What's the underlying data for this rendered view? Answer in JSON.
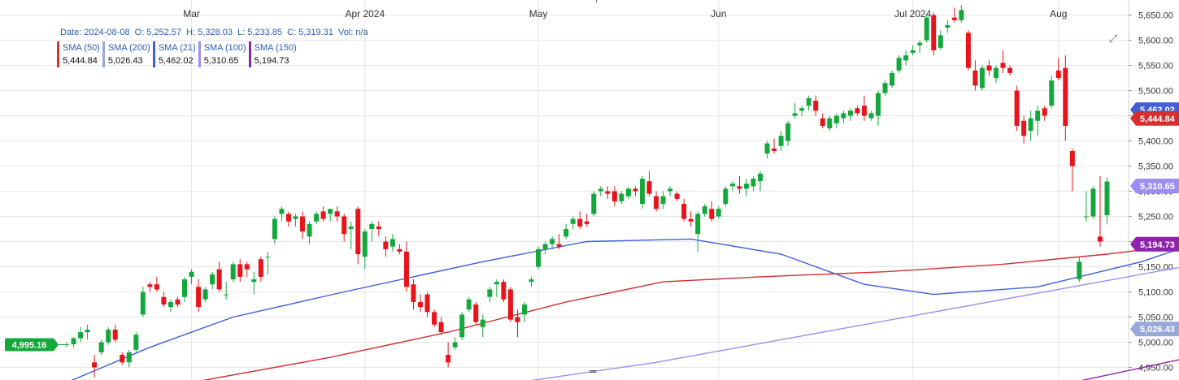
{
  "ohlc": {
    "date_label": "Date:",
    "date": "2024-08-08",
    "open_label": "O:",
    "open": "5,252.57",
    "high_label": "H:",
    "high": "5,328.03",
    "low_label": "L:",
    "low": "5,233.85",
    "close_label": "C:",
    "close": "5,319.31",
    "vol_label": "Vol:",
    "vol": "n/a"
  },
  "legend": [
    {
      "name": "SMA (50)",
      "value": "5,444.84",
      "color": "#d32f2f"
    },
    {
      "name": "SMA (200)",
      "value": "5,026.43",
      "color": "#98a8d8"
    },
    {
      "name": "SMA (21)",
      "value": "5,462.02",
      "color": "#3d5fd9"
    },
    {
      "name": "SMA (100)",
      "value": "5,310.65",
      "color": "#9b8ef0"
    },
    {
      "name": "SMA (150)",
      "value": "5,194.73",
      "color": "#8e24aa"
    }
  ],
  "icons": {
    "expand": "expand-icon",
    "drag": "drag-handle-icon"
  },
  "colors": {
    "up": "#14a83c",
    "down": "#e8141b",
    "grid": "#e6e6e6"
  },
  "chart_data": {
    "type": "candlestick",
    "x_labels": [
      {
        "label": "Mar",
        "date": "2024-03-01"
      },
      {
        "label": "Apr 2024",
        "date": "2024-04-01"
      },
      {
        "label": "May",
        "date": "2024-05-01"
      },
      {
        "label": "Jun",
        "date": "2024-06-03"
      },
      {
        "label": "Jul 2024",
        "date": "2024-07-01"
      },
      {
        "label": "Aug",
        "date": "2024-08-01"
      }
    ],
    "y_ticks": [
      "5,650.00",
      "5,600.00",
      "5,550.00",
      "5,500.00",
      "5,450.00",
      "5,400.00",
      "5,350.00",
      "5,300.00",
      "5,250.00",
      "5,200.00",
      "5,150.00",
      "5,100.00",
      "5,050.00",
      "5,000.00",
      "4,950.00"
    ],
    "y_values": [
      5650,
      5600,
      5550,
      5500,
      5450,
      5400,
      5350,
      5300,
      5250,
      5200,
      5150,
      5100,
      5050,
      5000,
      4950
    ],
    "ylim": [
      4925,
      5680
    ],
    "grid": true,
    "candles": [
      [
        4995,
        5000,
        4990,
        4996
      ],
      [
        4996,
        5010,
        4990,
        5008
      ],
      [
        5008,
        5030,
        5000,
        5020
      ],
      [
        5020,
        5035,
        5005,
        5025
      ],
      [
        4960,
        4975,
        4930,
        4950
      ],
      [
        4980,
        5005,
        4975,
        5000
      ],
      [
        5000,
        5030,
        4995,
        5025
      ],
      [
        5025,
        5035,
        5000,
        5005
      ],
      [
        4975,
        4980,
        4955,
        4960
      ],
      [
        4960,
        4985,
        4950,
        4980
      ],
      [
        4985,
        5020,
        4980,
        5015
      ],
      [
        5055,
        5110,
        5050,
        5100
      ],
      [
        5115,
        5120,
        5100,
        5110
      ],
      [
        5115,
        5130,
        5100,
        5105
      ],
      [
        5090,
        5100,
        5070,
        5075
      ],
      [
        5070,
        5085,
        5060,
        5080
      ],
      [
        5085,
        5090,
        5070,
        5075
      ],
      [
        5090,
        5130,
        5080,
        5125
      ],
      [
        5130,
        5145,
        5115,
        5140
      ],
      [
        5110,
        5125,
        5060,
        5070
      ],
      [
        5085,
        5110,
        5080,
        5105
      ],
      [
        5115,
        5140,
        5105,
        5135
      ],
      [
        5145,
        5160,
        5100,
        5105
      ],
      [
        5095,
        5120,
        5085,
        5095
      ],
      [
        5125,
        5160,
        5120,
        5155
      ],
      [
        5155,
        5165,
        5120,
        5130
      ],
      [
        5155,
        5160,
        5130,
        5145
      ],
      [
        5120,
        5140,
        5095,
        5125
      ],
      [
        5165,
        5170,
        5120,
        5130
      ],
      [
        5170,
        5180,
        5135,
        5170
      ],
      [
        5205,
        5250,
        5195,
        5245
      ],
      [
        5255,
        5270,
        5240,
        5265
      ],
      [
        5255,
        5260,
        5230,
        5240
      ],
      [
        5245,
        5255,
        5230,
        5250
      ],
      [
        5250,
        5260,
        5205,
        5220
      ],
      [
        5210,
        5240,
        5195,
        5235
      ],
      [
        5240,
        5260,
        5235,
        5255
      ],
      [
        5260,
        5270,
        5240,
        5245
      ],
      [
        5255,
        5265,
        5240,
        5265
      ],
      [
        5260,
        5270,
        5240,
        5250
      ],
      [
        5250,
        5255,
        5200,
        5215
      ],
      [
        5225,
        5240,
        5185,
        5230
      ],
      [
        5265,
        5270,
        5155,
        5175
      ],
      [
        5170,
        5225,
        5145,
        5220
      ],
      [
        5225,
        5240,
        5200,
        5235
      ],
      [
        5230,
        5240,
        5210,
        5225
      ],
      [
        5200,
        5210,
        5170,
        5185
      ],
      [
        5190,
        5215,
        5180,
        5205
      ],
      [
        5185,
        5195,
        5175,
        5180
      ],
      [
        5180,
        5200,
        5100,
        5110
      ],
      [
        5115,
        5125,
        5065,
        5080
      ],
      [
        5080,
        5095,
        5060,
        5070
      ],
      [
        5095,
        5100,
        5050,
        5060
      ],
      [
        5060,
        5065,
        5030,
        5035
      ],
      [
        5040,
        5050,
        5015,
        5020
      ],
      [
        4975,
        5000,
        4950,
        4960
      ],
      [
        4990,
        5010,
        4985,
        5000
      ],
      [
        5010,
        5060,
        5005,
        5055
      ],
      [
        5065,
        5090,
        5060,
        5085
      ],
      [
        5075,
        5080,
        5035,
        5040
      ],
      [
        5030,
        5055,
        5010,
        5045
      ],
      [
        5090,
        5110,
        5080,
        5105
      ],
      [
        5115,
        5125,
        5090,
        5120
      ],
      [
        5120,
        5125,
        5080,
        5085
      ],
      [
        5105,
        5110,
        5040,
        5045
      ],
      [
        5050,
        5065,
        5010,
        5040
      ],
      [
        5055,
        5080,
        5040,
        5075
      ],
      [
        5120,
        5130,
        5110,
        5125
      ],
      [
        5150,
        5190,
        5145,
        5185
      ],
      [
        5185,
        5200,
        5175,
        5195
      ],
      [
        5195,
        5210,
        5185,
        5205
      ],
      [
        5195,
        5215,
        5185,
        5190
      ],
      [
        5210,
        5235,
        5205,
        5225
      ],
      [
        5235,
        5250,
        5225,
        5245
      ],
      [
        5245,
        5260,
        5225,
        5230
      ],
      [
        5240,
        5255,
        5230,
        5235
      ],
      [
        5255,
        5300,
        5250,
        5295
      ],
      [
        5300,
        5310,
        5290,
        5305
      ],
      [
        5300,
        5310,
        5285,
        5295
      ],
      [
        5300,
        5310,
        5270,
        5280
      ],
      [
        5280,
        5300,
        5275,
        5295
      ],
      [
        5290,
        5310,
        5285,
        5305
      ],
      [
        5305,
        5310,
        5290,
        5300
      ],
      [
        5275,
        5330,
        5265,
        5325
      ],
      [
        5320,
        5340,
        5290,
        5295
      ],
      [
        5290,
        5300,
        5260,
        5265
      ],
      [
        5275,
        5300,
        5265,
        5290
      ],
      [
        5300,
        5310,
        5290,
        5305
      ],
      [
        5295,
        5300,
        5280,
        5285
      ],
      [
        5275,
        5285,
        5240,
        5245
      ],
      [
        5245,
        5260,
        5230,
        5240
      ],
      [
        5215,
        5260,
        5180,
        5255
      ],
      [
        5255,
        5275,
        5250,
        5270
      ],
      [
        5265,
        5280,
        5240,
        5245
      ],
      [
        5250,
        5270,
        5245,
        5265
      ],
      [
        5275,
        5310,
        5270,
        5305
      ],
      [
        5310,
        5320,
        5300,
        5315
      ],
      [
        5310,
        5330,
        5295,
        5305
      ],
      [
        5305,
        5325,
        5290,
        5315
      ],
      [
        5310,
        5330,
        5300,
        5325
      ],
      [
        5320,
        5340,
        5300,
        5335
      ],
      [
        5375,
        5400,
        5365,
        5395
      ],
      [
        5385,
        5405,
        5375,
        5380
      ],
      [
        5390,
        5420,
        5380,
        5410
      ],
      [
        5400,
        5440,
        5390,
        5435
      ],
      [
        5450,
        5475,
        5445,
        5455
      ],
      [
        5460,
        5470,
        5450,
        5465
      ],
      [
        5470,
        5490,
        5460,
        5485
      ],
      [
        5480,
        5490,
        5450,
        5460
      ],
      [
        5445,
        5455,
        5425,
        5430
      ],
      [
        5425,
        5450,
        5420,
        5445
      ],
      [
        5435,
        5455,
        5425,
        5450
      ],
      [
        5445,
        5460,
        5435,
        5455
      ],
      [
        5450,
        5465,
        5440,
        5460
      ],
      [
        5465,
        5470,
        5450,
        5455
      ],
      [
        5470,
        5490,
        5440,
        5450
      ],
      [
        5445,
        5460,
        5440,
        5455
      ],
      [
        5450,
        5500,
        5430,
        5495
      ],
      [
        5495,
        5520,
        5490,
        5515
      ],
      [
        5510,
        5540,
        5505,
        5535
      ],
      [
        5540,
        5570,
        5535,
        5565
      ],
      [
        5560,
        5580,
        5550,
        5570
      ],
      [
        5575,
        5590,
        5570,
        5580
      ],
      [
        5590,
        5600,
        5575,
        5595
      ],
      [
        5600,
        5650,
        5595,
        5645
      ],
      [
        5650,
        5655,
        5570,
        5580
      ],
      [
        5585,
        5620,
        5580,
        5610
      ],
      [
        5625,
        5640,
        5615,
        5630
      ],
      [
        5645,
        5665,
        5635,
        5640
      ],
      [
        5640,
        5670,
        5635,
        5660
      ],
      [
        5615,
        5620,
        5540,
        5545
      ],
      [
        5540,
        5560,
        5500,
        5510
      ],
      [
        5505,
        5550,
        5500,
        5545
      ],
      [
        5550,
        5560,
        5530,
        5540
      ],
      [
        5525,
        5550,
        5515,
        5545
      ],
      [
        5555,
        5580,
        5535,
        5545
      ],
      [
        5545,
        5550,
        5530,
        5535
      ],
      [
        5500,
        5510,
        5420,
        5430
      ],
      [
        5440,
        5450,
        5395,
        5410
      ],
      [
        5420,
        5460,
        5400,
        5445
      ],
      [
        5440,
        5470,
        5410,
        5460
      ],
      [
        5465,
        5470,
        5440,
        5450
      ],
      [
        5470,
        5530,
        5465,
        5520
      ],
      [
        5540,
        5565,
        5520,
        5525
      ],
      [
        5545,
        5570,
        5400,
        5430
      ],
      [
        5380,
        5385,
        5300,
        5350
      ],
      [
        5125,
        5170,
        5120,
        5160
      ],
      [
        5250,
        5300,
        5240,
        5250
      ],
      [
        5250,
        5310,
        5245,
        5305
      ],
      [
        5210,
        5330,
        5190,
        5200
      ],
      [
        5252.57,
        5328.03,
        5233.85,
        5319.31
      ]
    ],
    "series": [
      {
        "name": "SMA (21)",
        "color": "#3d5fd9",
        "pts": [
          [
            4920,
            0
          ],
          [
            4990,
            12
          ],
          [
            5050,
            24
          ],
          [
            5100,
            40
          ],
          [
            5160,
            60
          ],
          [
            5200,
            75
          ],
          [
            5205,
            90
          ],
          [
            5175,
            103
          ],
          [
            5115,
            115
          ],
          [
            5095,
            125
          ],
          [
            5110,
            140
          ],
          [
            5160,
            155
          ],
          [
            5230,
            170
          ],
          [
            5290,
            185
          ],
          [
            5340,
            200
          ],
          [
            5410,
            212
          ],
          [
            5480,
            225
          ],
          [
            5535,
            237
          ],
          [
            5545,
            245
          ],
          [
            5520,
            253
          ],
          [
            5462,
            260
          ]
        ]
      },
      {
        "name": "SMA (50)",
        "color": "#d32f2f",
        "pts": [
          [
            4920,
            18
          ],
          [
            4970,
            38
          ],
          [
            5020,
            55
          ],
          [
            5080,
            72
          ],
          [
            5120,
            86
          ],
          [
            5130,
            100
          ],
          [
            5140,
            118
          ],
          [
            5155,
            135
          ],
          [
            5175,
            150
          ],
          [
            5200,
            165
          ],
          [
            5250,
            180
          ],
          [
            5320,
            195
          ],
          [
            5400,
            212
          ],
          [
            5440,
            230
          ],
          [
            5447,
            248
          ],
          [
            5444.84,
            260
          ]
        ]
      },
      {
        "name": "SMA (100)",
        "color": "#9b8ef0",
        "pts": [
          [
            4920,
            65
          ],
          [
            4960,
            85
          ],
          [
            5010,
            105
          ],
          [
            5060,
            125
          ],
          [
            5110,
            145
          ],
          [
            5160,
            165
          ],
          [
            5220,
            185
          ],
          [
            5270,
            205
          ],
          [
            5295,
            225
          ],
          [
            5305,
            240
          ],
          [
            5310.65,
            260
          ]
        ]
      },
      {
        "name": "SMA (150)",
        "color": "#8e24aa",
        "pts": [
          [
            4920,
            145
          ],
          [
            4970,
            162
          ],
          [
            5010,
            178
          ],
          [
            5050,
            194
          ],
          [
            5090,
            210
          ],
          [
            5130,
            226
          ],
          [
            5170,
            244
          ],
          [
            5194.73,
            260
          ]
        ]
      },
      {
        "name": "SMA (200)",
        "color": "#98a8d8",
        "pts": [
          [
            4920,
            218
          ],
          [
            4960,
            235
          ],
          [
            5000,
            250
          ],
          [
            5026.43,
            260
          ]
        ]
      }
    ],
    "tags": [
      {
        "text": "4,995.16",
        "value": 4995.16,
        "color": "#14a83c",
        "side": "left"
      },
      {
        "text": "5,462.02",
        "value": 5462.02,
        "color": "#3d5fd9",
        "side": "right"
      },
      {
        "text": "5,444.84",
        "value": 5444.84,
        "color": "#d32f2f",
        "side": "right"
      },
      {
        "text": "5,310.65",
        "value": 5310.65,
        "color": "#9b8ef0",
        "side": "right"
      },
      {
        "text": "5,194.73",
        "value": 5194.73,
        "color": "#8e24aa",
        "side": "right"
      },
      {
        "text": "5,026.43",
        "value": 5026.43,
        "color": "#98a8d8",
        "side": "right"
      }
    ]
  }
}
